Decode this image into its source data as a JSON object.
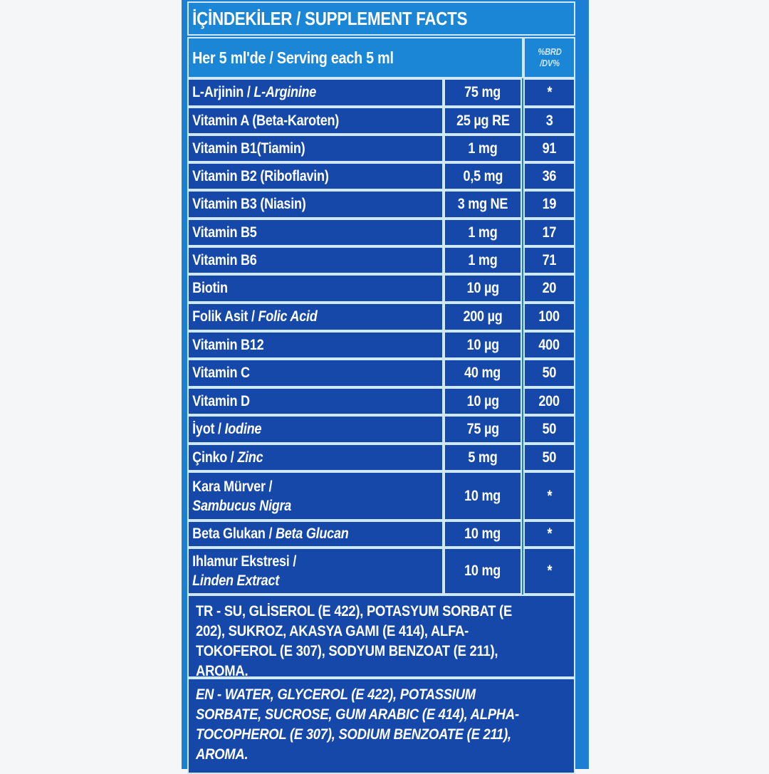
{
  "title": "İÇİNDEKİLER / SUPPLEMENT FACTS",
  "serving": "Her 5 ml'de / Serving each 5 ml",
  "dv_header": "%BRD /DV%",
  "rows": [
    {
      "tr": "L-Arjinin / ",
      "en": "L-Arginine",
      "amount": "75 mg",
      "dv": "*"
    },
    {
      "tr": "Vitamin A (Beta-Karoten)",
      "en": "",
      "amount": "25 µg RE",
      "dv": "3"
    },
    {
      "tr": "Vitamin B1(Tiamin)",
      "en": "",
      "amount": "1 mg",
      "dv": "91"
    },
    {
      "tr": "Vitamin B2 (Riboflavin)",
      "en": "",
      "amount": "0,5 mg",
      "dv": "36"
    },
    {
      "tr": "Vitamin B3 (Niasin)",
      "en": "",
      "amount": "3 mg NE",
      "dv": "19"
    },
    {
      "tr": "Vitamin B5",
      "en": "",
      "amount": "1 mg",
      "dv": "17"
    },
    {
      "tr": "Vitamin B6",
      "en": "",
      "amount": "1 mg",
      "dv": "71"
    },
    {
      "tr": "Biotin",
      "en": "",
      "amount": "10 µg",
      "dv": "20"
    },
    {
      "tr": "Folik Asit / ",
      "en": "Folic Acid",
      "amount": "200 µg",
      "dv": "100"
    },
    {
      "tr": "Vitamin B12",
      "en": "",
      "amount": "10 µg",
      "dv": "400"
    },
    {
      "tr": "Vitamin C",
      "en": "",
      "amount": "40 mg",
      "dv": "50"
    },
    {
      "tr": "Vitamin D",
      "en": "",
      "amount": "10 µg",
      "dv": "200"
    },
    {
      "tr": "İyot / ",
      "en": "Iodine",
      "amount": "75 µg",
      "dv": "50"
    },
    {
      "tr": "Çinko / ",
      "en": "Zinc",
      "amount": "5 mg",
      "dv": "50"
    },
    {
      "tr": "Kara Mürver /",
      "en": "Sambucus Nigra",
      "amount": "10 mg",
      "dv": "*"
    },
    {
      "tr": "Beta Glukan / ",
      "en": "Beta Glucan",
      "amount": "10 mg",
      "dv": "*"
    },
    {
      "tr": "Ihlamur Ekstresi /",
      "en": "Linden Extract",
      "amount": "10 mg",
      "dv": "*"
    }
  ],
  "ingredients_tr": "TR - SU, GLİSEROL (E 422), POTASYUM SORBAT (E 202), SUKROZ, AKASYA GAMI (E 414), ALFA-TOKOFEROL (E 307), SODYUM BENZOAT (E 211), AROMA.",
  "ingredients_en": "EN - WATER, GLYCEROL (E 422), POTASSIUM SORBATE, SUCROSE, GUM ARABIC (E 414), ALPHA-TOCOPHEROL (E 307), SODIUM BENZOATE (E 211), AROMA.",
  "colors": {
    "panel": "#1d7fd4",
    "row": "#1548a9",
    "header": "#1b86d6",
    "border": "#cfe9fb",
    "text": "#ffffff"
  }
}
